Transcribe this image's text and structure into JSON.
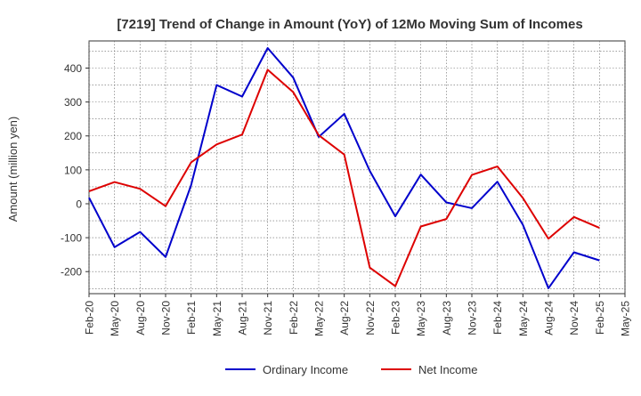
{
  "chart_data": {
    "type": "line",
    "title": "[7219]  Trend of Change in Amount (YoY) of 12Mo Moving Sum of Incomes",
    "xlabel": "",
    "ylabel": "Amount (million yen)",
    "categories": [
      "Feb-20",
      "May-20",
      "Aug-20",
      "Nov-20",
      "Feb-21",
      "May-21",
      "Aug-21",
      "Nov-21",
      "Feb-22",
      "May-22",
      "Aug-22",
      "Nov-22",
      "Feb-23",
      "May-23",
      "Aug-23",
      "Nov-23",
      "Feb-24",
      "May-24",
      "Aug-24",
      "Nov-24",
      "Feb-25",
      "May-25"
    ],
    "ylim": [
      -265,
      480
    ],
    "yticks": [
      -200,
      -100,
      0,
      100,
      200,
      300,
      400
    ],
    "grid": true,
    "legend_position": "bottom-center",
    "series": [
      {
        "name": "Ordinary Income",
        "color": "#0000cc",
        "values": [
          18,
          -128,
          -83,
          -157,
          55,
          350,
          316,
          459,
          372,
          197,
          265,
          97,
          -37,
          86,
          4,
          -13,
          65,
          -62,
          -249,
          -143,
          -167,
          null
        ]
      },
      {
        "name": "Net Income",
        "color": "#dd0000",
        "values": [
          37,
          64,
          44,
          -7,
          122,
          175,
          204,
          395,
          329,
          202,
          145,
          -188,
          -243,
          -67,
          -45,
          85,
          110,
          17,
          -103,
          -39,
          -71,
          null
        ]
      }
    ]
  }
}
